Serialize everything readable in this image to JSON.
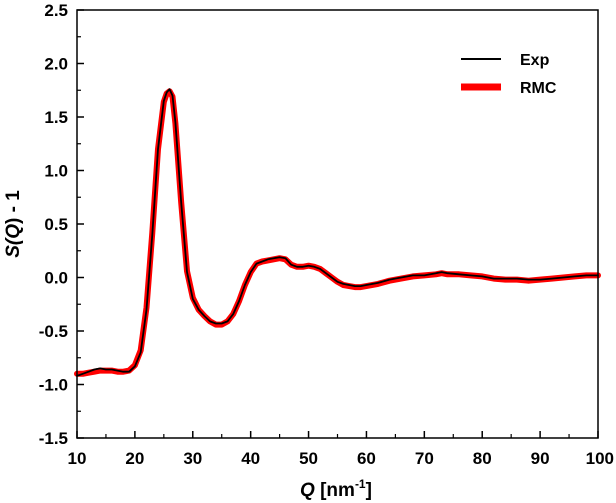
{
  "chart_data": {
    "type": "line",
    "xlabel": "Q [nm⁻¹]",
    "xlabel_parts": {
      "var": "Q",
      "unit_open": " [nm",
      "sup": "-1",
      "unit_close": "]"
    },
    "ylabel": "S(Q) - 1",
    "ylabel_parts": {
      "s": "S(",
      "var": "Q",
      "rest": ") - 1"
    },
    "xlim": [
      10,
      100
    ],
    "ylim": [
      -1.5,
      2.5
    ],
    "xticks": [
      10,
      20,
      30,
      40,
      50,
      60,
      70,
      80,
      90,
      100
    ],
    "xtick_labels": [
      "10",
      "20",
      "30",
      "40",
      "50",
      "60",
      "70",
      "80",
      "90",
      "100"
    ],
    "yticks": [
      -1.5,
      -1.0,
      -0.5,
      0.0,
      0.5,
      1.0,
      1.5,
      2.0,
      2.5
    ],
    "ytick_labels": [
      "-1.5",
      "-1.0",
      "-0.5",
      "0.0",
      "0.5",
      "1.0",
      "1.5",
      "2.0",
      "2.5"
    ],
    "legend_position": "top-right",
    "grid": false,
    "series": [
      {
        "name": "Exp",
        "color": "#000000",
        "x": [
          10,
          11,
          12,
          13,
          14,
          15,
          16,
          17,
          18,
          19,
          20,
          21,
          22,
          23,
          24,
          25,
          25.5,
          26,
          26.5,
          27,
          28,
          29,
          30,
          31,
          32,
          33,
          34,
          35,
          36,
          37,
          38,
          39,
          40,
          41,
          42,
          43,
          44,
          45,
          46,
          47,
          48,
          49,
          50,
          51,
          52,
          53,
          54,
          55,
          56,
          57,
          58,
          59,
          60,
          62,
          64,
          66,
          68,
          70,
          72,
          73,
          74,
          76,
          78,
          80,
          82,
          84,
          86,
          88,
          90,
          92,
          94,
          96,
          98,
          100
        ],
        "y": [
          -0.92,
          -0.9,
          -0.88,
          -0.86,
          -0.85,
          -0.86,
          -0.86,
          -0.87,
          -0.88,
          -0.88,
          -0.83,
          -0.7,
          -0.3,
          0.4,
          1.2,
          1.65,
          1.73,
          1.76,
          1.7,
          1.45,
          0.7,
          0.05,
          -0.2,
          -0.3,
          -0.36,
          -0.41,
          -0.43,
          -0.43,
          -0.41,
          -0.34,
          -0.22,
          -0.07,
          0.05,
          0.13,
          0.15,
          0.17,
          0.18,
          0.19,
          0.18,
          0.12,
          0.1,
          0.1,
          0.11,
          0.1,
          0.08,
          0.04,
          0.0,
          -0.04,
          -0.06,
          -0.07,
          -0.08,
          -0.08,
          -0.07,
          -0.05,
          -0.02,
          0.0,
          0.02,
          0.02,
          0.04,
          0.05,
          0.04,
          0.03,
          0.02,
          0.01,
          -0.01,
          -0.01,
          -0.01,
          -0.02,
          -0.02,
          -0.01,
          0.0,
          0.01,
          0.02,
          0.02
        ]
      },
      {
        "name": "RMC",
        "color": "#ff0000",
        "x": [
          10,
          11,
          12,
          13,
          14,
          15,
          16,
          17,
          18,
          19,
          20,
          21,
          22,
          23,
          24,
          25,
          25.5,
          26,
          26.5,
          27,
          28,
          29,
          30,
          31,
          32,
          33,
          34,
          35,
          36,
          37,
          38,
          39,
          40,
          41,
          42,
          43,
          44,
          45,
          46,
          47,
          48,
          49,
          50,
          51,
          52,
          53,
          54,
          55,
          56,
          57,
          58,
          59,
          60,
          62,
          64,
          66,
          68,
          70,
          72,
          73,
          74,
          76,
          78,
          80,
          82,
          84,
          86,
          88,
          90,
          92,
          94,
          96,
          98,
          100
        ],
        "y": [
          -0.9,
          -0.9,
          -0.89,
          -0.88,
          -0.87,
          -0.87,
          -0.87,
          -0.88,
          -0.88,
          -0.87,
          -0.82,
          -0.68,
          -0.28,
          0.42,
          1.2,
          1.64,
          1.72,
          1.74,
          1.69,
          1.44,
          0.7,
          0.06,
          -0.19,
          -0.3,
          -0.36,
          -0.41,
          -0.44,
          -0.44,
          -0.41,
          -0.34,
          -0.22,
          -0.07,
          0.05,
          0.13,
          0.15,
          0.16,
          0.17,
          0.18,
          0.17,
          0.12,
          0.1,
          0.1,
          0.11,
          0.1,
          0.08,
          0.04,
          0.0,
          -0.04,
          -0.07,
          -0.08,
          -0.09,
          -0.09,
          -0.08,
          -0.06,
          -0.03,
          -0.01,
          0.01,
          0.02,
          0.03,
          0.04,
          0.03,
          0.03,
          0.02,
          0.01,
          -0.01,
          -0.02,
          -0.02,
          -0.03,
          -0.02,
          -0.01,
          0.0,
          0.01,
          0.02,
          0.02
        ]
      }
    ]
  }
}
